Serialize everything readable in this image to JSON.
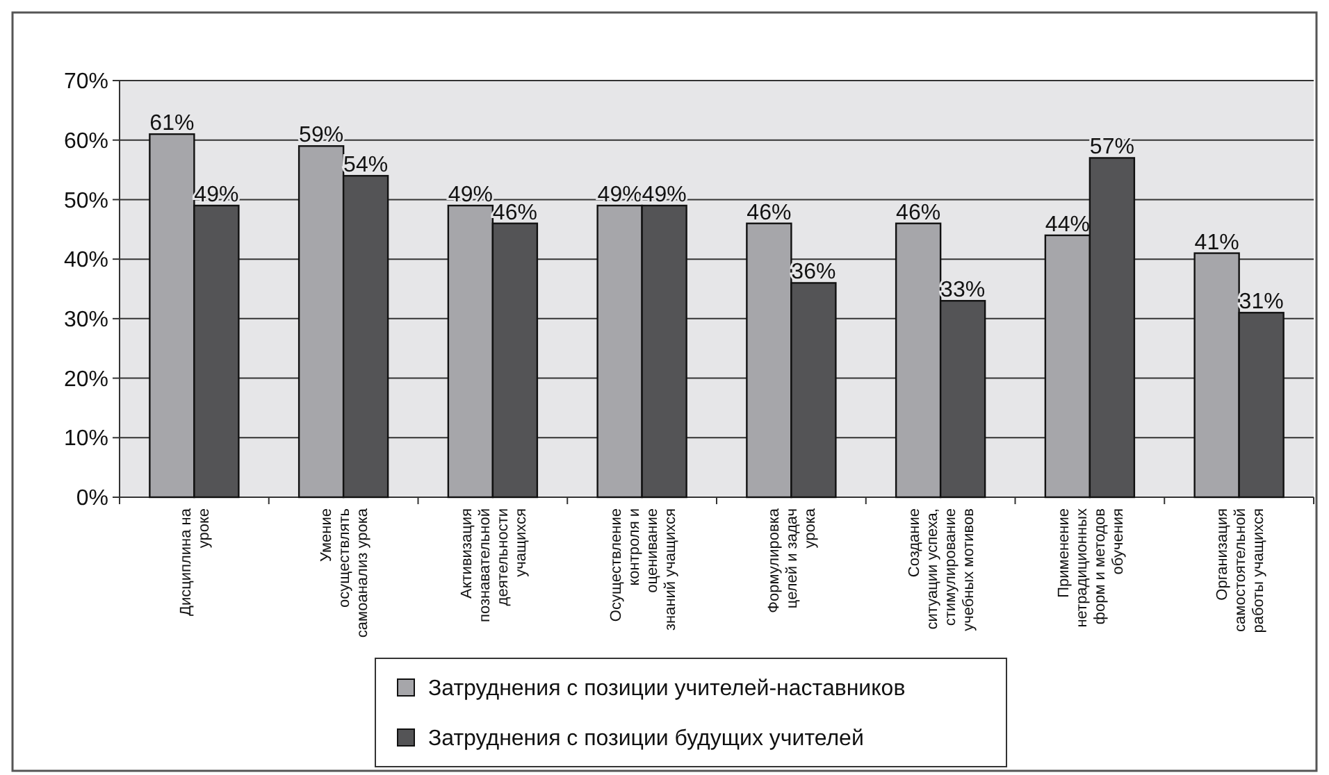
{
  "chart_data": {
    "type": "bar",
    "categories": [
      "Дисциплина на\nуроке",
      "Умение\nосуществлять\nсамоанализ урока",
      "Активизация\nпознавательной\nдеятельности\nучащихся",
      "Осуществление\nконтроля и\nоценивание\nзнаний учащихся",
      "Формулировка\nцелей и задач\nурока",
      "Создание\nситуации успеха,\nстимулирование\nучебных мотивов",
      "Применение\nнетрадиционных\nформ и методов\nобучения",
      "Организация\nсамостоятельной\nработы учащихся"
    ],
    "series": [
      {
        "name": "Затруднения с позиции учителей-наставников",
        "color": "#a6a6aa",
        "values": [
          61,
          59,
          49,
          49,
          46,
          46,
          44,
          41
        ],
        "value_labels": [
          "61%",
          "59%",
          "49%",
          "49%",
          "46%",
          "46%",
          "44%",
          "41%"
        ]
      },
      {
        "name": "Затруднения с позиции будущих учителей",
        "color": "#545456",
        "values": [
          49,
          54,
          46,
          49,
          36,
          33,
          57,
          31
        ],
        "value_labels": [
          "49%",
          "54%",
          "46%",
          "49%",
          "36%",
          "33%",
          "57%",
          "31%"
        ]
      }
    ],
    "ylim": [
      0,
      70
    ],
    "yticks": [
      {
        "value": 0,
        "label": "0%"
      },
      {
        "value": 10,
        "label": "10%"
      },
      {
        "value": 20,
        "label": "20%"
      },
      {
        "value": 30,
        "label": "30%"
      },
      {
        "value": 40,
        "label": "40%"
      },
      {
        "value": 50,
        "label": "50%"
      },
      {
        "value": 60,
        "label": "60%"
      },
      {
        "value": 70,
        "label": "70%"
      }
    ],
    "grid": "y",
    "legend": "bottom"
  }
}
